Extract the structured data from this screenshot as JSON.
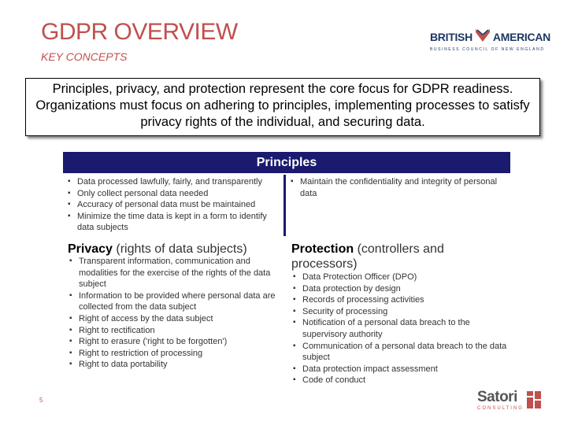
{
  "header": {
    "title": "GDPR OVERVIEW",
    "subtitle": "KEY CONCEPTS"
  },
  "logos": {
    "brand_left": "BRITISH",
    "brand_right": "AMERICAN",
    "brand_tagline": "BUSINESS COUNCIL OF NEW ENGLAND",
    "satori_name": "Satori",
    "satori_tagline": "CONSULTING"
  },
  "intro": {
    "text": "Principles, privacy, and protection represent the core focus for GDPR readiness. Organizations must focus on adhering to principles, implementing processes to satisfy privacy rights of the individual, and securing data."
  },
  "principles": {
    "header": "Principles",
    "left_items": [
      "Data processed lawfully, fairly, and transparently",
      "Only collect personal data needed",
      "Accuracy of personal data must be maintained",
      "Minimize the time data is kept in a form to identify data subjects"
    ],
    "right_items": [
      "Maintain the confidentiality and integrity of personal data"
    ]
  },
  "privacy": {
    "title": "Privacy",
    "title_suffix": " (rights of data subjects)",
    "items": [
      "Transparent information, communication and modalities for the exercise of the rights of the data subject",
      "Information to be provided where personal data are collected from the data subject",
      "Right of access by the data subject",
      "Right to rectification",
      "Right to erasure ('right to be forgotten')",
      "Right to restriction of processing",
      "Right to data portability"
    ]
  },
  "protection": {
    "title": "Protection",
    "title_suffix": " (controllers and processors)",
    "items": [
      "Data Protection Officer (DPO)",
      "Data protection by design",
      "Records of processing activities",
      "Security of processing",
      "Notification of a personal data breach to the supervisory authority",
      "Communication of a personal data breach to the data subject",
      "Data protection impact assessment",
      "Code of conduct"
    ]
  },
  "footer": {
    "page_number": "5"
  },
  "colors": {
    "accent": "#c0504d",
    "navy": "#1a1a6e",
    "brand_blue": "#1f3864"
  }
}
